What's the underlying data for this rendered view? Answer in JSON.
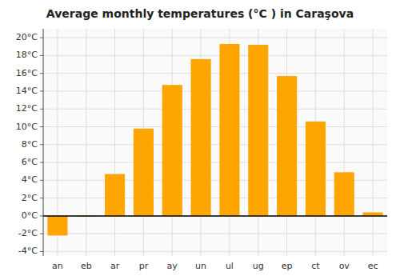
{
  "chart_data": {
    "type": "bar",
    "title": "Average monthly temperatures (°C ) in Caraşova",
    "categories": [
      "an",
      "eb",
      "ar",
      "pr",
      "ay",
      "un",
      "ul",
      "ug",
      "ep",
      "ct",
      "ov",
      "ec"
    ],
    "values": [
      -2.2,
      -0.1,
      4.7,
      9.8,
      14.7,
      17.6,
      19.3,
      19.2,
      15.7,
      10.6,
      4.9,
      0.4
    ],
    "color": "#FFA500",
    "ylim": [
      -4.5,
      21
    ],
    "yticks": [
      {
        "value": -4,
        "label": "-4°C"
      },
      {
        "value": -2,
        "label": "-2°C"
      },
      {
        "value": 0,
        "label": "0°C"
      },
      {
        "value": 2,
        "label": "2°C"
      },
      {
        "value": 4,
        "label": "4°C"
      },
      {
        "value": 6,
        "label": "6°C"
      },
      {
        "value": 8,
        "label": "8°C"
      },
      {
        "value": 10,
        "label": "10°C"
      },
      {
        "value": 12,
        "label": "12°C"
      },
      {
        "value": 14,
        "label": "14°C"
      },
      {
        "value": 16,
        "label": "16°C"
      },
      {
        "value": 18,
        "label": "18°C"
      },
      {
        "value": 20,
        "label": "20°C"
      }
    ],
    "grid": true
  }
}
